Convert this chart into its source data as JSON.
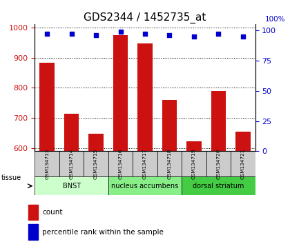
{
  "title": "GDS2344 / 1452735_at",
  "samples": [
    "GSM134713",
    "GSM134714",
    "GSM134715",
    "GSM134716",
    "GSM134717",
    "GSM134718",
    "GSM134719",
    "GSM134720",
    "GSM134721"
  ],
  "counts": [
    884,
    714,
    648,
    975,
    947,
    759,
    623,
    789,
    655
  ],
  "percentiles": [
    97,
    97,
    96,
    99,
    97,
    96,
    95,
    97,
    95
  ],
  "ylim_left": [
    590,
    1010
  ],
  "ylim_right": [
    0,
    105
  ],
  "yticks_left": [
    600,
    700,
    800,
    900,
    1000
  ],
  "yticks_right": [
    0,
    25,
    50,
    75,
    100
  ],
  "groups": [
    {
      "label": "BNST",
      "start": 0,
      "end": 3,
      "color": "#ccffcc"
    },
    {
      "label": "nucleus accumbens",
      "start": 3,
      "end": 6,
      "color": "#88ee88"
    },
    {
      "label": "dorsal striatum",
      "start": 6,
      "end": 9,
      "color": "#44cc44"
    }
  ],
  "bar_color": "#cc1111",
  "dot_color": "#0000cc",
  "bar_bottom": 590,
  "tissue_label": "tissue",
  "legend_count_label": "count",
  "legend_pct_label": "percentile rank within the sample",
  "title_fontsize": 11,
  "axis_tick_color_left": "#cc1111",
  "axis_tick_color_right": "#0000cc",
  "sample_bg_color": "#cccccc",
  "figsize": [
    4.2,
    3.54
  ],
  "dpi": 100
}
